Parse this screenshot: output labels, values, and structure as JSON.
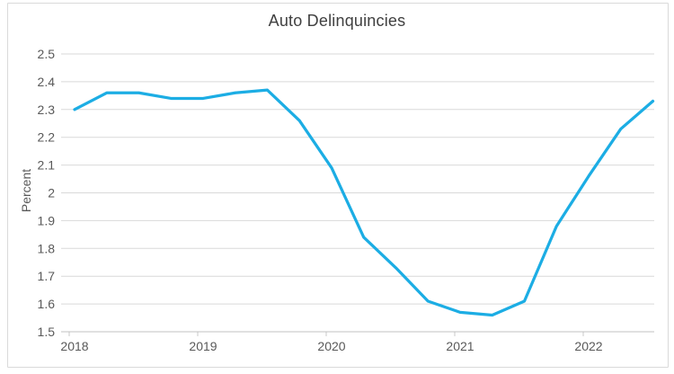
{
  "chart_data": {
    "type": "line",
    "title": "Auto Delinquincies",
    "ylabel": "Percent",
    "xlabel": "",
    "x": [
      "2018 Q1",
      "2018 Q2",
      "2018 Q3",
      "2018 Q4",
      "2019 Q1",
      "2019 Q2",
      "2019 Q3",
      "2019 Q4",
      "2020 Q1",
      "2020 Q2",
      "2020 Q3",
      "2020 Q4",
      "2021 Q1",
      "2021 Q2",
      "2021 Q3",
      "2021 Q4",
      "2022 Q1",
      "2022 Q2",
      "2022 Q3"
    ],
    "values": [
      2.3,
      2.36,
      2.36,
      2.34,
      2.34,
      2.36,
      2.37,
      2.26,
      2.09,
      1.84,
      1.73,
      1.61,
      1.57,
      1.56,
      1.61,
      1.88,
      2.06,
      2.23,
      2.33
    ],
    "x_tick_labels": [
      "2018",
      "2019",
      "2020",
      "2021",
      "2022"
    ],
    "y_tick_labels": [
      "2.5",
      "2.4",
      "2.3",
      "2.2",
      "2.1",
      "2",
      "1.9",
      "1.8",
      "1.7",
      "1.6",
      "1.5"
    ],
    "ylim": [
      1.5,
      2.5
    ],
    "grid": "horizontal",
    "legend": "none",
    "markers": "none"
  },
  "colors": {
    "line": "#1CADE4",
    "gridline": "#D9D9D9",
    "axis_line": "#C0C0C0",
    "tick_label": "#595959",
    "title": "#404040",
    "background": "#FFFFFF",
    "frame_border": "#DADADA"
  }
}
